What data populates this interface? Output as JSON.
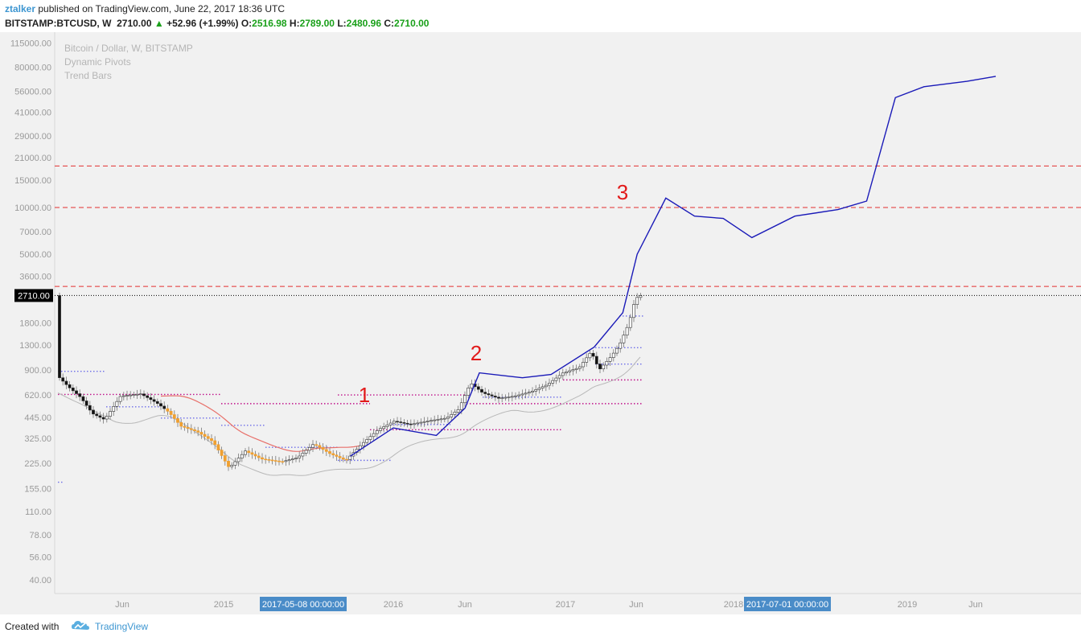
{
  "header": {
    "author": "ztalker",
    "published": "published on TradingView.com, June 22, 2017 18:36 UTC",
    "symbol": "BITSTAMP:BTCUSD, W",
    "last": "2710.00",
    "change": "+52.96 (+1.99%)",
    "o_label": "O:",
    "o": "2516.98",
    "h_label": "H:",
    "h": "2789.00",
    "l_label": "L:",
    "l": "2480.96",
    "c_label": "C:",
    "c": "2710.00"
  },
  "legend": [
    "Bitcoin / Dollar, W, BITSTAMP",
    "Dynamic Pivots",
    "Trend Bars"
  ],
  "footer": {
    "created_with": "Created with",
    "brand": "TradingView"
  },
  "colors": {
    "projection": "#1a1ab8",
    "resistance": "#e23030",
    "candle_up": "#ffffff",
    "candle_down": "#111111",
    "candle_bear_orange": "#f0a030",
    "moving_average": "#e8706a",
    "pivot_magenta": "#c0108a",
    "pivot_blue": "#6e6ee8",
    "label_red": "#e21a1a",
    "axis_highlight": "#4a8cc8"
  },
  "chart_data": {
    "type": "line",
    "yscale": "log",
    "ylim": [
      40,
      115000
    ],
    "y_ticks": [
      "115000.00",
      "80000.00",
      "56000.00",
      "41000.00",
      "29000.00",
      "21000.00",
      "15000.00",
      "10000.00",
      "7000.00",
      "5000.00",
      "3600.00",
      "2710.00",
      "1800.00",
      "1300.00",
      "900.00",
      "620.00",
      "445.00",
      "325.00",
      "225.00",
      "155.00",
      "110.00",
      "78.00",
      "56.00",
      "40.00"
    ],
    "current_price_label": "2710.00",
    "x_ticks": [
      "Jun",
      "2015",
      "2016",
      "Jun",
      "2017",
      "Jun",
      "2018",
      "2019",
      "Jun"
    ],
    "x_highlights": [
      "2017-05-08 00:00:00",
      "2017-07-01 00:00:00"
    ],
    "resistance_levels": [
      3100,
      10000,
      18500
    ],
    "current_price": 2710,
    "annotations": [
      "1",
      "2",
      "3"
    ],
    "series": [
      {
        "x": [
          "2015-10",
          "2016-01",
          "2016-04",
          "2016-06",
          "2016-07",
          "2016-10",
          "2016-12",
          "2017-03",
          "2017-05",
          "2017-06",
          "2017-08",
          "2017-10",
          "2017-12",
          "2018-02",
          "2018-05",
          "2018-08",
          "2018-10",
          "2018-12",
          "2019-02",
          "2019-05",
          "2019-07"
        ],
        "values": [
          250,
          380,
          340,
          510,
          860,
          800,
          840,
          1260,
          2100,
          5000,
          11500,
          8800,
          8500,
          6400,
          8800,
          9700,
          11000,
          51000,
          60000,
          65000,
          70000
        ]
      }
    ]
  }
}
